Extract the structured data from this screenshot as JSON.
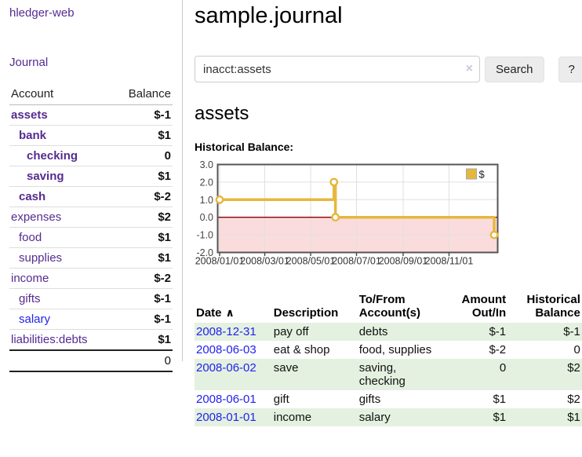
{
  "sidebar": {
    "brand": "hledger-web",
    "journal_link": "Journal",
    "accounts": {
      "header_account": "Account",
      "header_balance": "Balance",
      "rows": [
        {
          "name": "assets",
          "indent": 0,
          "bold": true,
          "balance": "$-1",
          "balance_class": "neg-strong"
        },
        {
          "name": "bank",
          "indent": 1,
          "bold": true,
          "balance": "$1",
          "balance_class": ""
        },
        {
          "name": "checking",
          "indent": 2,
          "bold": true,
          "balance": "0",
          "balance_class": ""
        },
        {
          "name": "saving",
          "indent": 2,
          "bold": true,
          "balance": "$1",
          "balance_class": ""
        },
        {
          "name": "cash",
          "indent": 1,
          "bold": true,
          "balance": "$-2",
          "balance_class": "neg-strong"
        },
        {
          "name": "expenses",
          "indent": 0,
          "bold": false,
          "balance": "$2",
          "balance_class": ""
        },
        {
          "name": "food",
          "indent": 1,
          "bold": false,
          "balance": "$1",
          "balance_class": ""
        },
        {
          "name": "supplies",
          "indent": 1,
          "bold": false,
          "balance": "$1",
          "balance_class": ""
        },
        {
          "name": "income",
          "indent": 0,
          "bold": false,
          "balance": "$-2",
          "balance_class": "neg-soft"
        },
        {
          "name": "gifts",
          "indent": 1,
          "bold": false,
          "balance": "$-1",
          "balance_class": "neg-soft"
        },
        {
          "name": "salary",
          "indent": 1,
          "bold": false,
          "balance": "$-1",
          "balance_class": "neg-soft",
          "link_color": "blue"
        },
        {
          "name": "liabilities:debts",
          "indent": 0,
          "bold": false,
          "balance": "$1",
          "balance_class": ""
        }
      ],
      "total": "0"
    }
  },
  "header": {
    "title": "sample.journal"
  },
  "search": {
    "value": "inacct:assets",
    "clear_icon": "×",
    "button_label": "Search",
    "help_label": "?"
  },
  "account_page": {
    "heading": "assets"
  },
  "chart_data": {
    "type": "line",
    "title": "Historical Balance:",
    "step": true,
    "xlim": [
      "2008-01-01",
      "2008-12-31"
    ],
    "ylim": [
      -2,
      3
    ],
    "y_ticks": [
      "3.0",
      "2.0",
      "1.0",
      "0.0",
      "-1.0",
      "-2.0"
    ],
    "y_tick_values": [
      3,
      2,
      1,
      0,
      -1,
      -2
    ],
    "x_ticks": [
      {
        "date": "2008-01-01",
        "label": "2008/01/01"
      },
      {
        "date": "2008-03-01",
        "label": "2008/03/01"
      },
      {
        "date": "2008-05-01",
        "label": "2008/05/01"
      },
      {
        "date": "2008-07-01",
        "label": "2008/07/01"
      },
      {
        "date": "2008-09-01",
        "label": "2008/09/01"
      },
      {
        "date": "2008-11-01",
        "label": "2008/11/01"
      }
    ],
    "series": [
      {
        "name": "$",
        "points": [
          {
            "x": "2008-01-01",
            "y": 1
          },
          {
            "x": "2008-06-01",
            "y": 2
          },
          {
            "x": "2008-06-03",
            "y": 0
          },
          {
            "x": "2008-12-31",
            "y": -1
          }
        ]
      }
    ],
    "legend": {
      "label": "$",
      "position": "top-right"
    },
    "colors": {
      "line": "#e6b73e",
      "marker_fill": "#ffffff",
      "negative_region": "#fbdcdc",
      "zero_line": "#8b0000",
      "border": "#555555",
      "grid": "#e0e0e0",
      "tick_text": "#333333"
    }
  },
  "transactions": {
    "headers": [
      {
        "label": "Date",
        "align": "left",
        "sort_icon": "∧"
      },
      {
        "label": "Description",
        "align": "left"
      },
      {
        "label": "To/From Account(s)",
        "align": "left"
      },
      {
        "label": "Amount Out/In",
        "align": "right"
      },
      {
        "label": "Historical Balance",
        "align": "right"
      }
    ],
    "rows": [
      {
        "date": "2008-12-31",
        "description": "pay off",
        "accounts": "debts",
        "amount": "$-1",
        "amount_neg": true,
        "balance": "$-1",
        "balance_neg": true
      },
      {
        "date": "2008-06-03",
        "description": "eat & shop",
        "accounts": "food, supplies",
        "amount": "$-2",
        "amount_neg": true,
        "balance": "0",
        "balance_neg": false
      },
      {
        "date": "2008-06-02",
        "description": "save",
        "accounts": "saving, checking",
        "amount": "0",
        "amount_neg": false,
        "balance": "$2",
        "balance_neg": false
      },
      {
        "date": "2008-06-01",
        "description": "gift",
        "accounts": "gifts",
        "amount": "$1",
        "amount_neg": false,
        "balance": "$2",
        "balance_neg": false
      },
      {
        "date": "2008-01-01",
        "description": "income",
        "accounts": "salary",
        "amount": "$1",
        "amount_neg": false,
        "balance": "$1",
        "balance_neg": false
      }
    ]
  }
}
